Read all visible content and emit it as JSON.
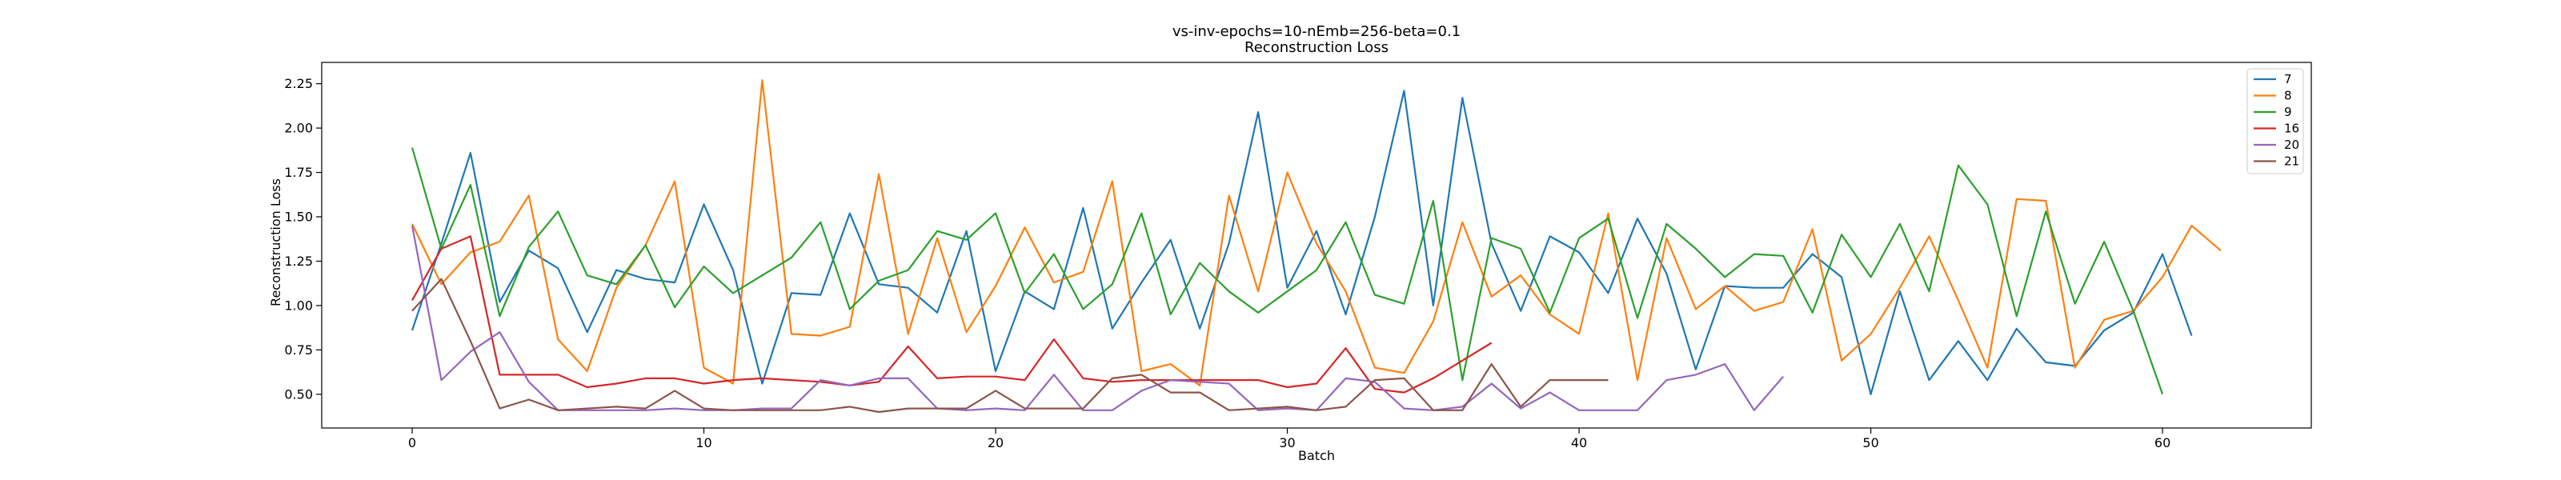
{
  "chart_data": {
    "type": "line",
    "title": "vs-inv-epochs=10-nEmb=256-beta=0.1",
    "subtitle": "Reconstruction Loss",
    "xlabel": "Batch",
    "ylabel": "Reconstruction Loss",
    "xlim": [
      -3.1,
      65.1
    ],
    "ylim": [
      0.31,
      2.37
    ],
    "xticks": [
      0,
      10,
      20,
      30,
      40,
      50,
      60
    ],
    "yticks": [
      0.5,
      0.75,
      1.0,
      1.25,
      1.5,
      1.75,
      2.0,
      2.25
    ],
    "ytick_labels": [
      "0.50",
      "0.75",
      "1.00",
      "1.25",
      "1.50",
      "1.75",
      "2.00",
      "2.25"
    ],
    "legend_position": "top-right",
    "grid": false,
    "series": [
      {
        "name": "7",
        "color": "#1f77b4",
        "values": [
          0.86,
          1.35,
          1.86,
          1.02,
          1.31,
          1.21,
          0.85,
          1.2,
          1.15,
          1.13,
          1.57,
          1.2,
          0.56,
          1.07,
          1.06,
          1.52,
          1.12,
          1.1,
          0.96,
          1.42,
          0.63,
          1.08,
          0.98,
          1.55,
          0.87,
          1.13,
          1.37,
          0.87,
          1.35,
          2.09,
          1.1,
          1.42,
          0.95,
          1.5,
          2.21,
          1.0,
          2.17,
          1.35,
          0.97,
          1.39,
          1.3,
          1.07,
          1.49,
          1.18,
          0.64,
          1.11,
          1.1,
          1.1,
          1.29,
          1.16,
          0.5,
          1.08,
          0.58,
          0.8,
          0.58,
          0.87,
          0.68,
          0.66,
          0.86,
          0.96,
          1.29,
          0.83
        ]
      },
      {
        "name": "8",
        "color": "#ff7f0e",
        "values": [
          1.46,
          1.12,
          1.3,
          1.36,
          1.62,
          0.81,
          0.63,
          1.1,
          1.34,
          1.7,
          0.65,
          0.56,
          2.27,
          0.84,
          0.83,
          0.88,
          1.74,
          0.84,
          1.38,
          0.85,
          1.11,
          1.44,
          1.13,
          1.19,
          1.7,
          0.63,
          0.67,
          0.55,
          1.62,
          1.08,
          1.75,
          1.35,
          1.08,
          0.65,
          0.62,
          0.91,
          1.47,
          1.05,
          1.17,
          0.95,
          0.84,
          1.52,
          0.58,
          1.38,
          0.98,
          1.11,
          0.97,
          1.02,
          1.43,
          0.69,
          0.84,
          1.1,
          1.39,
          1.03,
          0.65,
          1.6,
          1.59,
          0.65,
          0.92,
          0.97,
          1.16,
          1.45,
          1.31
        ]
      },
      {
        "name": "9",
        "color": "#2ca02c",
        "values": [
          1.89,
          1.32,
          1.68,
          0.94,
          1.33,
          1.53,
          1.17,
          1.12,
          1.34,
          0.99,
          1.22,
          1.07,
          1.17,
          1.27,
          1.47,
          0.98,
          1.14,
          1.2,
          1.42,
          1.37,
          1.52,
          1.07,
          1.29,
          0.98,
          1.12,
          1.52,
          0.95,
          1.24,
          1.08,
          0.96,
          1.08,
          1.2,
          1.47,
          1.06,
          1.01,
          1.59,
          0.58,
          1.38,
          1.32,
          0.96,
          1.38,
          1.49,
          0.93,
          1.46,
          1.32,
          1.16,
          1.29,
          1.28,
          0.96,
          1.4,
          1.16,
          1.46,
          1.08,
          1.79,
          1.57,
          0.94,
          1.53,
          1.01,
          1.36,
          0.97,
          0.5
        ]
      },
      {
        "name": "16",
        "color": "#d62728",
        "values": [
          1.03,
          1.32,
          1.39,
          0.61,
          0.61,
          0.61,
          0.54,
          0.56,
          0.59,
          0.59,
          0.56,
          0.58,
          0.59,
          0.58,
          0.57,
          0.55,
          0.57,
          0.77,
          0.59,
          0.6,
          0.6,
          0.58,
          0.81,
          0.59,
          0.57,
          0.58,
          0.58,
          0.58,
          0.58,
          0.58,
          0.54,
          0.56,
          0.76,
          0.53,
          0.51,
          0.59,
          0.69,
          0.79
        ]
      },
      {
        "name": "20",
        "color": "#9467bd",
        "values": [
          1.45,
          0.58,
          0.74,
          0.85,
          0.57,
          0.41,
          0.41,
          0.41,
          0.41,
          0.42,
          0.41,
          0.41,
          0.42,
          0.42,
          0.58,
          0.55,
          0.59,
          0.59,
          0.42,
          0.41,
          0.42,
          0.41,
          0.61,
          0.41,
          0.41,
          0.52,
          0.58,
          0.57,
          0.56,
          0.41,
          0.42,
          0.41,
          0.59,
          0.57,
          0.42,
          0.41,
          0.43,
          0.56,
          0.42,
          0.51,
          0.41,
          0.41,
          0.41,
          0.58,
          0.61,
          0.67,
          0.41,
          0.6
        ]
      },
      {
        "name": "21",
        "color": "#8c564b",
        "values": [
          0.97,
          1.15,
          0.8,
          0.42,
          0.47,
          0.41,
          0.42,
          0.43,
          0.42,
          0.52,
          0.42,
          0.41,
          0.41,
          0.41,
          0.41,
          0.43,
          0.4,
          0.42,
          0.42,
          0.42,
          0.52,
          0.42,
          0.42,
          0.42,
          0.59,
          0.61,
          0.51,
          0.51,
          0.41,
          0.42,
          0.43,
          0.41,
          0.43,
          0.58,
          0.59,
          0.41,
          0.41,
          0.67,
          0.43,
          0.58,
          0.58,
          0.58
        ]
      }
    ]
  }
}
